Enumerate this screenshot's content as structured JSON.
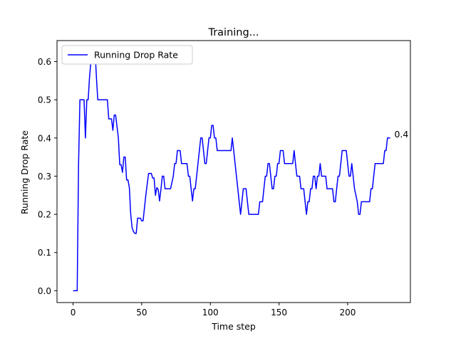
{
  "chart_data": {
    "type": "line",
    "title": "Training...",
    "xlabel": "Time step",
    "ylabel": "Running Drop Rate",
    "xlim": [
      -11.7,
      245.7
    ],
    "ylim": [
      -0.031,
      0.655
    ],
    "x_ticks": [
      0,
      50,
      100,
      150,
      200
    ],
    "x_tick_labels": [
      "0",
      "50",
      "100",
      "150",
      "200"
    ],
    "y_ticks": [
      0.0,
      0.1,
      0.2,
      0.3,
      0.4,
      0.5,
      0.6
    ],
    "y_tick_labels": [
      "0.0",
      "0.1",
      "0.2",
      "0.3",
      "0.4",
      "0.5",
      "0.6"
    ],
    "grid": false,
    "legend": {
      "position": "top-left",
      "entries": [
        "Running Drop Rate"
      ]
    },
    "annotation": {
      "text": "0.4",
      "x": 234,
      "y": 0.4
    },
    "series": [
      {
        "name": "Running Drop Rate",
        "color": "#0000ff",
        "points": [
          [
            0,
            0.0
          ],
          [
            3,
            0.0
          ],
          [
            4,
            0.33
          ],
          [
            5,
            0.5
          ],
          [
            6,
            0.5
          ],
          [
            8,
            0.5
          ],
          [
            9,
            0.4
          ],
          [
            10,
            0.5
          ],
          [
            11,
            0.5
          ],
          [
            12,
            0.56
          ],
          [
            13,
            0.6
          ],
          [
            14,
            0.63
          ],
          [
            15,
            0.6
          ],
          [
            16,
            0.63
          ],
          [
            17,
            0.56
          ],
          [
            18,
            0.5
          ],
          [
            20,
            0.5
          ],
          [
            22,
            0.5
          ],
          [
            25,
            0.5
          ],
          [
            26,
            0.45
          ],
          [
            28,
            0.45
          ],
          [
            29,
            0.42
          ],
          [
            30,
            0.46
          ],
          [
            31,
            0.46
          ],
          [
            32,
            0.43
          ],
          [
            33,
            0.4
          ],
          [
            34,
            0.33
          ],
          [
            35,
            0.33
          ],
          [
            36,
            0.31
          ],
          [
            37,
            0.35
          ],
          [
            38,
            0.35
          ],
          [
            39,
            0.29
          ],
          [
            40,
            0.29
          ],
          [
            41,
            0.27
          ],
          [
            42,
            0.2
          ],
          [
            43,
            0.165
          ],
          [
            44,
            0.155
          ],
          [
            45,
            0.15
          ],
          [
            46,
            0.15
          ],
          [
            47,
            0.19
          ],
          [
            49,
            0.19
          ],
          [
            50,
            0.183
          ],
          [
            51,
            0.183
          ],
          [
            53,
            0.25
          ],
          [
            55,
            0.307
          ],
          [
            57,
            0.307
          ],
          [
            58,
            0.295
          ],
          [
            59,
            0.295
          ],
          [
            60,
            0.25
          ],
          [
            61,
            0.27
          ],
          [
            62,
            0.265
          ],
          [
            63,
            0.235
          ],
          [
            64,
            0.265
          ],
          [
            65,
            0.3
          ],
          [
            66,
            0.3
          ],
          [
            67,
            0.267
          ],
          [
            71,
            0.267
          ],
          [
            73,
            0.3
          ],
          [
            74,
            0.333
          ],
          [
            75,
            0.333
          ],
          [
            76,
            0.367
          ],
          [
            78,
            0.367
          ],
          [
            79,
            0.333
          ],
          [
            83,
            0.333
          ],
          [
            84,
            0.3
          ],
          [
            85,
            0.3
          ],
          [
            86,
            0.267
          ],
          [
            87,
            0.235
          ],
          [
            88,
            0.267
          ],
          [
            89,
            0.267
          ],
          [
            90,
            0.3
          ],
          [
            92,
            0.367
          ],
          [
            93,
            0.4
          ],
          [
            94,
            0.4
          ],
          [
            95,
            0.367
          ],
          [
            96,
            0.333
          ],
          [
            97,
            0.333
          ],
          [
            98,
            0.367
          ],
          [
            99,
            0.4
          ],
          [
            100,
            0.4
          ],
          [
            101,
            0.433
          ],
          [
            102,
            0.433
          ],
          [
            103,
            0.4
          ],
          [
            104,
            0.4
          ],
          [
            105,
            0.367
          ],
          [
            115,
            0.367
          ],
          [
            116,
            0.4
          ],
          [
            117,
            0.367
          ],
          [
            118,
            0.333
          ],
          [
            119,
            0.3
          ],
          [
            120,
            0.267
          ],
          [
            121,
            0.233
          ],
          [
            122,
            0.2
          ],
          [
            123,
            0.233
          ],
          [
            124,
            0.267
          ],
          [
            126,
            0.267
          ],
          [
            127,
            0.233
          ],
          [
            128,
            0.2
          ],
          [
            135,
            0.2
          ],
          [
            136,
            0.233
          ],
          [
            138,
            0.233
          ],
          [
            139,
            0.267
          ],
          [
            140,
            0.3
          ],
          [
            141,
            0.3
          ],
          [
            142,
            0.333
          ],
          [
            143,
            0.333
          ],
          [
            144,
            0.3
          ],
          [
            145,
            0.267
          ],
          [
            146,
            0.267
          ],
          [
            147,
            0.3
          ],
          [
            148,
            0.3
          ],
          [
            149,
            0.333
          ],
          [
            150,
            0.333
          ],
          [
            151,
            0.367
          ],
          [
            153,
            0.367
          ],
          [
            154,
            0.333
          ],
          [
            160,
            0.333
          ],
          [
            161,
            0.367
          ],
          [
            162,
            0.333
          ],
          [
            163,
            0.3
          ],
          [
            165,
            0.3
          ],
          [
            166,
            0.267
          ],
          [
            168,
            0.267
          ],
          [
            169,
            0.233
          ],
          [
            170,
            0.2
          ],
          [
            171,
            0.233
          ],
          [
            172,
            0.233
          ],
          [
            173,
            0.267
          ],
          [
            174,
            0.267
          ],
          [
            175,
            0.3
          ],
          [
            176,
            0.3
          ],
          [
            177,
            0.267
          ],
          [
            178,
            0.3
          ],
          [
            179,
            0.3
          ],
          [
            180,
            0.333
          ],
          [
            181,
            0.3
          ],
          [
            184,
            0.3
          ],
          [
            185,
            0.267
          ],
          [
            189,
            0.267
          ],
          [
            190,
            0.233
          ],
          [
            191,
            0.233
          ],
          [
            192,
            0.267
          ],
          [
            193,
            0.3
          ],
          [
            194,
            0.3
          ],
          [
            195,
            0.333
          ],
          [
            196,
            0.367
          ],
          [
            199,
            0.367
          ],
          [
            200,
            0.333
          ],
          [
            201,
            0.3
          ],
          [
            202,
            0.3
          ],
          [
            203,
            0.333
          ],
          [
            204,
            0.3
          ],
          [
            205,
            0.267
          ],
          [
            207,
            0.233
          ],
          [
            208,
            0.2
          ],
          [
            209,
            0.2
          ],
          [
            210,
            0.233
          ],
          [
            216,
            0.233
          ],
          [
            217,
            0.267
          ],
          [
            218,
            0.267
          ],
          [
            219,
            0.3
          ],
          [
            220,
            0.333
          ],
          [
            226,
            0.333
          ],
          [
            227,
            0.367
          ],
          [
            228,
            0.367
          ],
          [
            229,
            0.4
          ],
          [
            231,
            0.4
          ]
        ]
      }
    ]
  }
}
